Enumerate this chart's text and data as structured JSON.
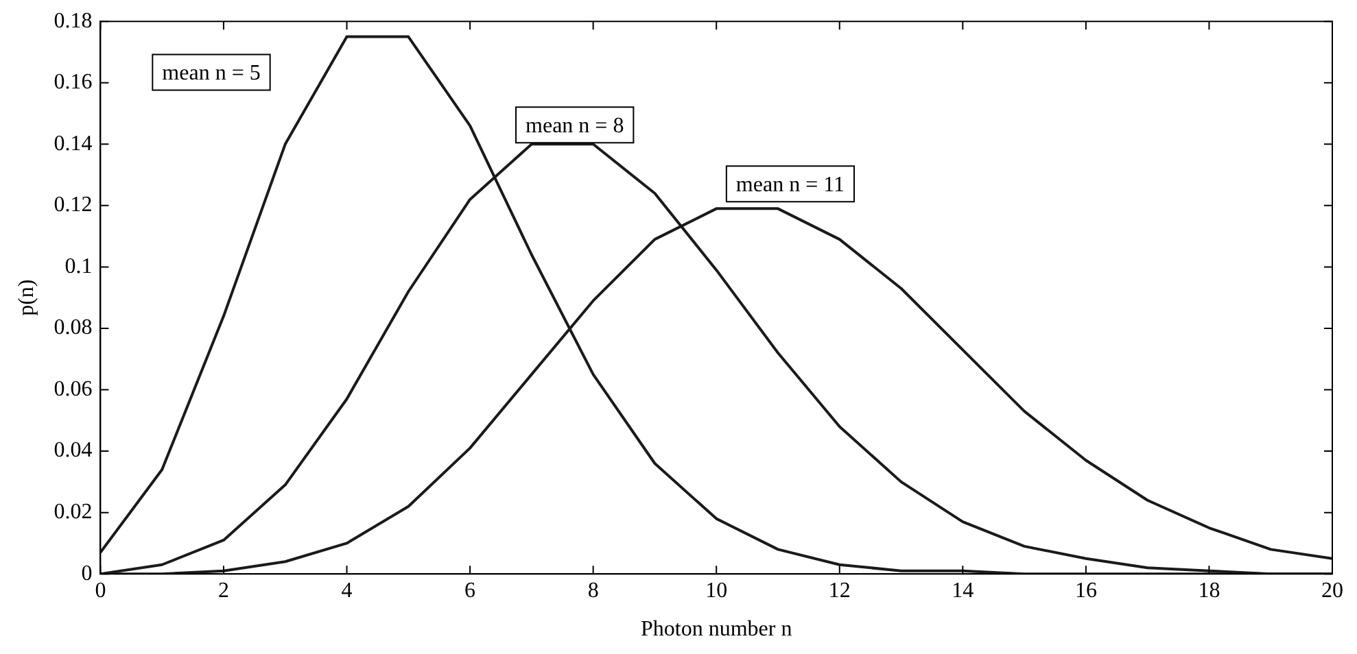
{
  "chart_data": {
    "type": "line",
    "xlabel": "Photon number n",
    "ylabel": "p(n)",
    "x": [
      0,
      1,
      2,
      3,
      4,
      5,
      6,
      7,
      8,
      9,
      10,
      11,
      12,
      13,
      14,
      15,
      16,
      17,
      18,
      19,
      20
    ],
    "series": [
      {
        "name": "mean n = 5",
        "color": "#1a1a1a",
        "values": [
          0.007,
          0.034,
          0.084,
          0.14,
          0.175,
          0.175,
          0.146,
          0.104,
          0.065,
          0.036,
          0.018,
          0.008,
          0.003,
          0.001,
          0.001,
          0,
          0,
          0,
          0,
          0,
          0
        ]
      },
      {
        "name": "mean n = 8",
        "color": "#1a1a1a",
        "values": [
          0,
          0.003,
          0.011,
          0.029,
          0.057,
          0.092,
          0.122,
          0.14,
          0.14,
          0.124,
          0.099,
          0.072,
          0.048,
          0.03,
          0.017,
          0.009,
          0.005,
          0.002,
          0.001,
          0,
          0
        ]
      },
      {
        "name": "mean n = 11",
        "color": "#1a1a1a",
        "values": [
          0,
          0,
          0.001,
          0.004,
          0.01,
          0.022,
          0.041,
          0.065,
          0.089,
          0.109,
          0.119,
          0.119,
          0.109,
          0.093,
          0.073,
          0.053,
          0.037,
          0.024,
          0.015,
          0.008,
          0.005
        ]
      }
    ],
    "xlim": [
      0,
      20
    ],
    "xticks": [
      0,
      2,
      4,
      6,
      8,
      10,
      12,
      14,
      16,
      18,
      20
    ],
    "ylim": [
      0,
      0.18
    ],
    "yticks": [
      0,
      0.02,
      0.04,
      0.06,
      0.08,
      0.1,
      0.12,
      0.14,
      0.16,
      0.18
    ],
    "grid": false,
    "legend": false,
    "marker": "none",
    "line_style": "solid"
  }
}
